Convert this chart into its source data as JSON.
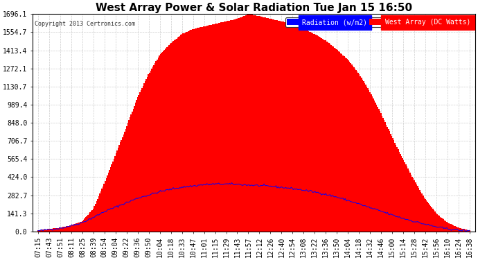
{
  "title": "West Array Power & Solar Radiation Tue Jan 15 16:50",
  "copyright": "Copyright 2013 Certronics.com",
  "legend_radiation": "Radiation (w/m2)",
  "legend_west_array": "West Array (DC Watts)",
  "yticks": [
    0.0,
    141.3,
    282.7,
    424.0,
    565.4,
    706.7,
    848.0,
    989.4,
    1130.7,
    1272.1,
    1413.4,
    1554.7,
    1696.1
  ],
  "ymax": 1696.1,
  "ymin": 0.0,
  "bar_color": "#FF0000",
  "line_color": "#0000FF",
  "background_color": "#FFFFFF",
  "grid_color": "#CCCCCC",
  "title_fontsize": 11,
  "tick_fontsize": 7,
  "xtick_labels": [
    "07:15",
    "07:43",
    "07:51",
    "08:11",
    "08:25",
    "08:39",
    "08:54",
    "09:04",
    "09:22",
    "09:36",
    "09:50",
    "10:04",
    "10:18",
    "10:33",
    "10:47",
    "11:01",
    "11:15",
    "11:29",
    "11:43",
    "11:57",
    "12:12",
    "12:26",
    "12:40",
    "12:54",
    "13:08",
    "13:22",
    "13:36",
    "13:50",
    "14:04",
    "14:18",
    "14:32",
    "14:46",
    "15:00",
    "15:14",
    "15:28",
    "15:42",
    "15:56",
    "16:10",
    "16:24",
    "16:38"
  ],
  "bar_values": [
    10,
    20,
    30,
    50,
    80,
    180,
    380,
    600,
    820,
    1050,
    1230,
    1380,
    1470,
    1540,
    1580,
    1600,
    1620,
    1640,
    1660,
    1696,
    1680,
    1660,
    1640,
    1620,
    1580,
    1540,
    1490,
    1420,
    1340,
    1230,
    1090,
    920,
    740,
    560,
    400,
    250,
    140,
    70,
    30,
    8
  ],
  "line_values": [
    5,
    15,
    25,
    45,
    70,
    110,
    155,
    190,
    225,
    260,
    285,
    310,
    330,
    345,
    355,
    365,
    370,
    370,
    368,
    362,
    358,
    352,
    344,
    335,
    322,
    308,
    290,
    268,
    242,
    215,
    185,
    158,
    128,
    102,
    78,
    56,
    36,
    20,
    10,
    4
  ],
  "n_interp": 400
}
